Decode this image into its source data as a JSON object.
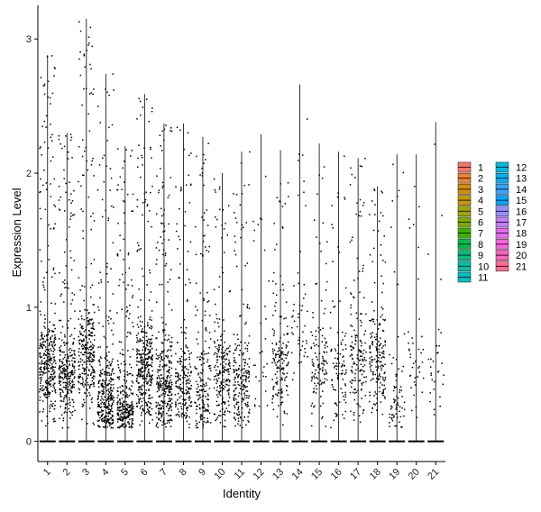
{
  "chart_data": {
    "type": "violin",
    "xlabel": "Identity",
    "ylabel": "Expression Level",
    "ylim": [
      -0.15,
      3.25
    ],
    "yticks": [
      0,
      1,
      2,
      3
    ],
    "categories": [
      "1",
      "2",
      "3",
      "4",
      "5",
      "6",
      "7",
      "8",
      "9",
      "10",
      "11",
      "12",
      "13",
      "14",
      "15",
      "16",
      "17",
      "18",
      "19",
      "20",
      "21"
    ],
    "colors": [
      "#F8766D",
      "#EA8331",
      "#D89000",
      "#C09B00",
      "#A3A500",
      "#7CAE00",
      "#39B600",
      "#00BB4E",
      "#00BF7D",
      "#00C1A3",
      "#00BFC4",
      "#00BAE0",
      "#00B0F6",
      "#35A2FF",
      "#00A5FF",
      "#9590FF",
      "#C77CFF",
      "#E76BF3",
      "#FA62DB",
      "#FF62BC",
      "#FF6C91"
    ],
    "max": [
      2.88,
      2.3,
      3.15,
      2.74,
      2.2,
      2.59,
      2.37,
      2.37,
      2.27,
      2.0,
      2.16,
      2.29,
      2.17,
      2.66,
      2.22,
      2.16,
      2.11,
      1.9,
      2.14,
      2.14,
      2.38
    ],
    "density": [
      0.7,
      0.58,
      0.62,
      0.66,
      0.6,
      0.7,
      0.64,
      0.42,
      0.36,
      0.42,
      0.42,
      0.06,
      0.32,
      0.1,
      0.24,
      0.2,
      0.32,
      0.36,
      0.14,
      0.08,
      0.06
    ],
    "median": [
      0.55,
      0.5,
      0.65,
      0.3,
      0.2,
      0.55,
      0.4,
      0.4,
      0.35,
      0.45,
      0.45,
      0.4,
      0.6,
      0.8,
      0.55,
      0.5,
      0.6,
      0.6,
      0.3,
      0.6,
      0.5
    ],
    "legend": {
      "position": "right",
      "columns": 2
    }
  }
}
